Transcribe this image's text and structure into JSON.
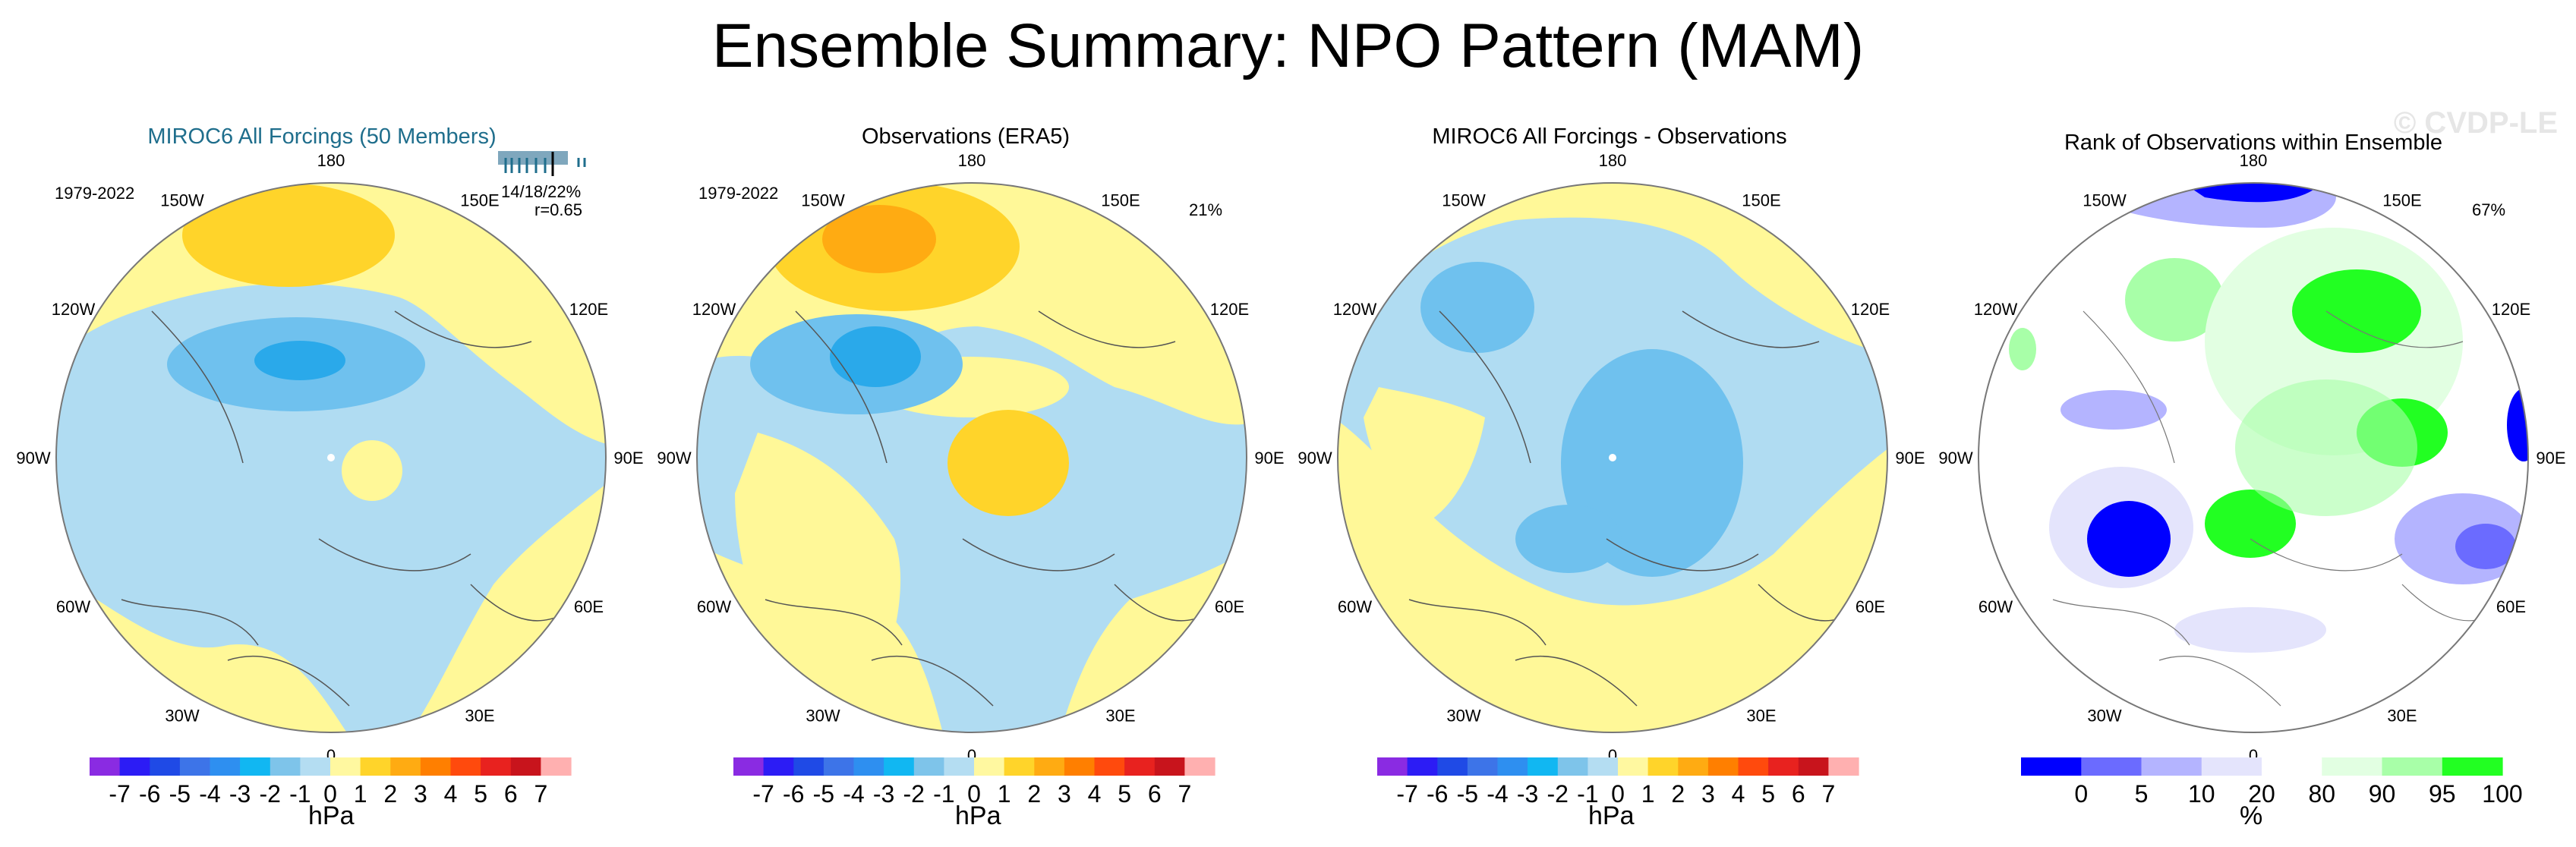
{
  "title": "Ensemble Summary: NPO Pattern (MAM)",
  "watermark": "© CVDP-LE",
  "colors": {
    "ensemble_title": "#1f6e8c",
    "map_outline": "#777777",
    "coast": "#555555",
    "neg1": "#b0dcf2",
    "neg2": "#6fc1ee",
    "neg3": "#2aa9ea",
    "pos1": "#fff898",
    "pos2": "#ffd42a",
    "pos3": "#ffab12"
  },
  "chart_data": [
    {
      "type": "polar-map",
      "title": "MIROC6 All Forcings (50 Members)",
      "period": "1979-2022",
      "stat1": "14/18/22%",
      "stat2": "r=0.65",
      "lon_labels": [
        "180",
        "150E",
        "120E",
        "90E",
        "60E",
        "30E",
        "0",
        "30W",
        "60W",
        "90W",
        "120W",
        "150W"
      ],
      "colorbar": {
        "labels": [
          "-7",
          "-6",
          "-5",
          "-4",
          "-3",
          "-2",
          "-1",
          "0",
          "1",
          "2",
          "3",
          "4",
          "5",
          "6",
          "7"
        ],
        "units": "hPa",
        "colors": [
          "#8a2be2",
          "#2c1cf5",
          "#1f4ae6",
          "#3d74e8",
          "#2e8ff0",
          "#11b7f2",
          "#7ec4ea",
          "#b4ddf2",
          "#fff8a0",
          "#ffd42a",
          "#ffab12",
          "#ff7f00",
          "#ff4a0d",
          "#e8221f",
          "#c8141c",
          "#ffb0b0"
        ]
      }
    },
    {
      "type": "polar-map",
      "title": "Observations (ERA5)",
      "period": "1979-2022",
      "stat1": "21%",
      "lon_labels": [
        "180",
        "150E",
        "120E",
        "90E",
        "60E",
        "30E",
        "0",
        "30W",
        "60W",
        "90W",
        "120W",
        "150W"
      ],
      "colorbar": {
        "labels": [
          "-7",
          "-6",
          "-5",
          "-4",
          "-3",
          "-2",
          "-1",
          "0",
          "1",
          "2",
          "3",
          "4",
          "5",
          "6",
          "7"
        ],
        "units": "hPa",
        "colors": [
          "#8a2be2",
          "#2c1cf5",
          "#1f4ae6",
          "#3d74e8",
          "#2e8ff0",
          "#11b7f2",
          "#7ec4ea",
          "#b4ddf2",
          "#fff8a0",
          "#ffd42a",
          "#ffab12",
          "#ff7f00",
          "#ff4a0d",
          "#e8221f",
          "#c8141c",
          "#ffb0b0"
        ]
      }
    },
    {
      "type": "polar-map",
      "title": "MIROC6 All Forcings - Observations",
      "lon_labels": [
        "180",
        "150E",
        "120E",
        "90E",
        "60E",
        "30E",
        "0",
        "30W",
        "60W",
        "90W",
        "120W",
        "150W"
      ],
      "colorbar": {
        "labels": [
          "-7",
          "-6",
          "-5",
          "-4",
          "-3",
          "-2",
          "-1",
          "0",
          "1",
          "2",
          "3",
          "4",
          "5",
          "6",
          "7"
        ],
        "units": "hPa",
        "colors": [
          "#8a2be2",
          "#2c1cf5",
          "#1f4ae6",
          "#3d74e8",
          "#2e8ff0",
          "#11b7f2",
          "#7ec4ea",
          "#b4ddf2",
          "#fff8a0",
          "#ffd42a",
          "#ffab12",
          "#ff7f00",
          "#ff4a0d",
          "#e8221f",
          "#c8141c",
          "#ffb0b0"
        ]
      }
    },
    {
      "type": "polar-map",
      "title": "Rank of Observations within Ensemble",
      "stat1": "67%",
      "lon_labels": [
        "180",
        "150E",
        "120E",
        "90E",
        "60E",
        "30E",
        "0",
        "30W",
        "60W",
        "90W",
        "120W",
        "150W"
      ],
      "colorbar": {
        "labels": [
          "0",
          "5",
          "10",
          "20",
          "80",
          "90",
          "95",
          "100"
        ],
        "units": "%",
        "colors": [
          "#0000ff",
          "#6b6bff",
          "#b4b4ff",
          "#e4e4fc",
          "#ffffff",
          "#e2ffe2",
          "#a8ffa8",
          "#22ff22"
        ]
      }
    }
  ]
}
